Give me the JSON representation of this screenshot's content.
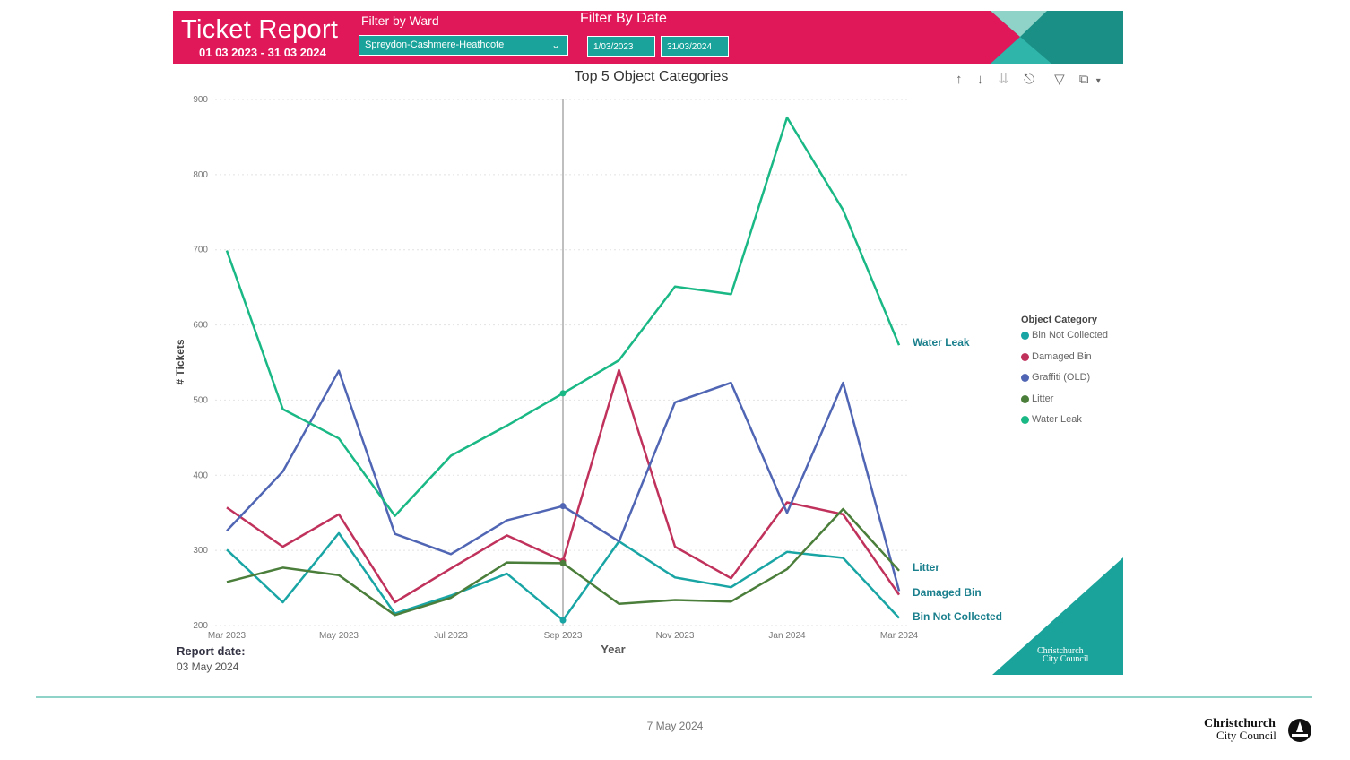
{
  "header": {
    "title": "Ticket Report",
    "date_range": "01 03 2023 - 31 03 2024",
    "ward_label": "Filter by Ward",
    "ward_value": "Spreydon-Cashmere-Heathcote",
    "date_label": "Filter By Date",
    "date_start": "1/03/2023",
    "date_end": "31/03/2024",
    "colors": {
      "banner": "#e0185a",
      "teal": "#1aa39a"
    }
  },
  "toolbar": {
    "icons": [
      "arrow-up-icon",
      "arrow-down-icon",
      "double-arrow-down-icon",
      "hierarchy-icon",
      "filter-icon",
      "focus-mode-icon",
      "more-options-icon"
    ]
  },
  "report": {
    "label": "Report date:",
    "value": "03 May 2024"
  },
  "corner_logo": {
    "line1": "Christchurch",
    "line2": "City Council"
  },
  "footer": {
    "date": "7 May 2024",
    "logo_line1": "Christchurch",
    "logo_line2": "City Council"
  },
  "chart_data": {
    "type": "line",
    "title": "Top 5 Object Categories",
    "xlabel": "Year",
    "ylabel": "# Tickets",
    "ylim": [
      200,
      900
    ],
    "yticks": [
      200,
      300,
      400,
      500,
      600,
      700,
      800,
      900
    ],
    "x": [
      "Mar 2023",
      "Apr 2023",
      "May 2023",
      "Jun 2023",
      "Jul 2023",
      "Aug 2023",
      "Sep 2023",
      "Oct 2023",
      "Nov 2023",
      "Dec 2023",
      "Jan 2024",
      "Feb 2024",
      "Mar 2024"
    ],
    "xtick_labels": [
      "Mar 2023",
      "",
      "May 2023",
      "",
      "Jul 2023",
      "",
      "Sep 2023",
      "",
      "Nov 2023",
      "",
      "Jan 2024",
      "",
      "Mar 2024"
    ],
    "legend_title": "Object Category",
    "legend_position": "right",
    "grid": true,
    "reference_line_x": "Sep 2023",
    "series": [
      {
        "name": "Bin Not Collected",
        "color": "#1aa5a5",
        "end_label": "Bin Not Collected",
        "values": [
          301,
          231,
          323,
          216,
          240,
          269,
          207,
          312,
          264,
          251,
          298,
          290,
          210
        ]
      },
      {
        "name": "Damaged Bin",
        "color": "#c0325c",
        "end_label": "Damaged Bin",
        "values": [
          357,
          305,
          348,
          231,
          276,
          320,
          286,
          540,
          305,
          263,
          364,
          348,
          241
        ]
      },
      {
        "name": "Graffiti (OLD)",
        "color": "#5066b4",
        "end_label": "",
        "values": [
          326,
          405,
          539,
          322,
          295,
          340,
          359,
          312,
          497,
          523,
          350,
          523,
          246
        ]
      },
      {
        "name": "Litter",
        "color": "#4a7e3a",
        "end_label": "Litter",
        "values": [
          258,
          277,
          267,
          214,
          237,
          284,
          283,
          229,
          234,
          232,
          275,
          355,
          273
        ]
      },
      {
        "name": "Water Leak",
        "color": "#1ab885",
        "end_label": "Water Leak",
        "values": [
          699,
          488,
          449,
          346,
          426,
          466,
          509,
          553,
          651,
          641,
          876,
          753,
          573
        ]
      }
    ]
  }
}
